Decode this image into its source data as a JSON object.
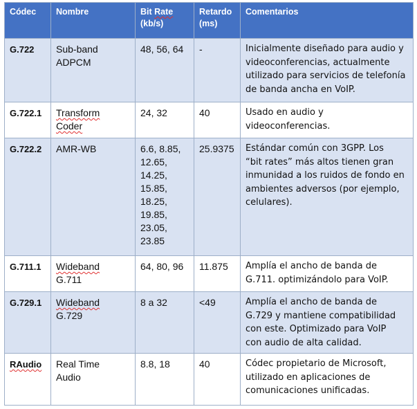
{
  "headers": {
    "codec": "Códec",
    "nombre": "Nombre",
    "bitrate_word1": "Bit",
    "bitrate_word2": "Rate",
    "bitrate_unit": "(kb/s)",
    "retardo": "Retardo",
    "retardo_unit": "(ms)",
    "comentarios": "Comentarios"
  },
  "rows": [
    {
      "codec": "G.722",
      "name_lines": [
        "Sub-band",
        "ADPCM"
      ],
      "bitrate_lines": [
        "48, 56, 64"
      ],
      "delay": "-",
      "comment_lines": [
        "Inicialmente diseñado para audio y",
        "videoconferencias, actualmente",
        "utilizado para servicios de telefonía",
        "de banda ancha en VoIP."
      ]
    },
    {
      "codec": "G.722.1",
      "name_lines": [
        "Transform",
        "Coder"
      ],
      "bitrate_lines": [
        "24, 32"
      ],
      "delay": "40",
      "comment_lines": [
        "Usado en audio y",
        "videoconferencias."
      ]
    },
    {
      "codec": "G.722.2",
      "name_lines": [
        "AMR-WB"
      ],
      "bitrate_lines": [
        "6.6, 8.85,",
        "12.65,",
        "14.25,",
        "15.85,",
        "18.25,",
        "19.85,",
        "23.05,",
        "23.85"
      ],
      "delay": "25.9375",
      "comment_lines": [
        "Estándar común con 3GPP. Los",
        "“bit rates” más altos tienen gran",
        "inmunidad a los ruidos de fondo en",
        "ambientes adversos (por ejemplo,",
        "celulares)."
      ]
    },
    {
      "codec": "G.711.1",
      "name_lines": [
        "Wideband",
        "G.711"
      ],
      "bitrate_lines": [
        "64, 80, 96"
      ],
      "delay": "11.875",
      "comment_lines": [
        "Amplía el ancho de banda de",
        "G.711. optimizándolo para VoIP."
      ]
    },
    {
      "codec": "G.729.1",
      "name_lines": [
        "Wideband",
        "G.729"
      ],
      "bitrate_lines": [
        "8 a 32"
      ],
      "delay": "<49",
      "comment_lines": [
        "Amplía el ancho de banda de",
        "G.729 y mantiene compatibilidad",
        "con este. Optimizado para VoIP",
        "con audio de alta calidad."
      ]
    },
    {
      "codec": "RAudio",
      "name_lines": [
        "Real Time",
        "Audio"
      ],
      "bitrate_lines": [
        "8.8, 18"
      ],
      "delay": "40",
      "comment_lines": [
        "Códec propietario de Microsoft,",
        "utilizado en aplicaciones de",
        "comunicaciones unificadas."
      ]
    }
  ]
}
